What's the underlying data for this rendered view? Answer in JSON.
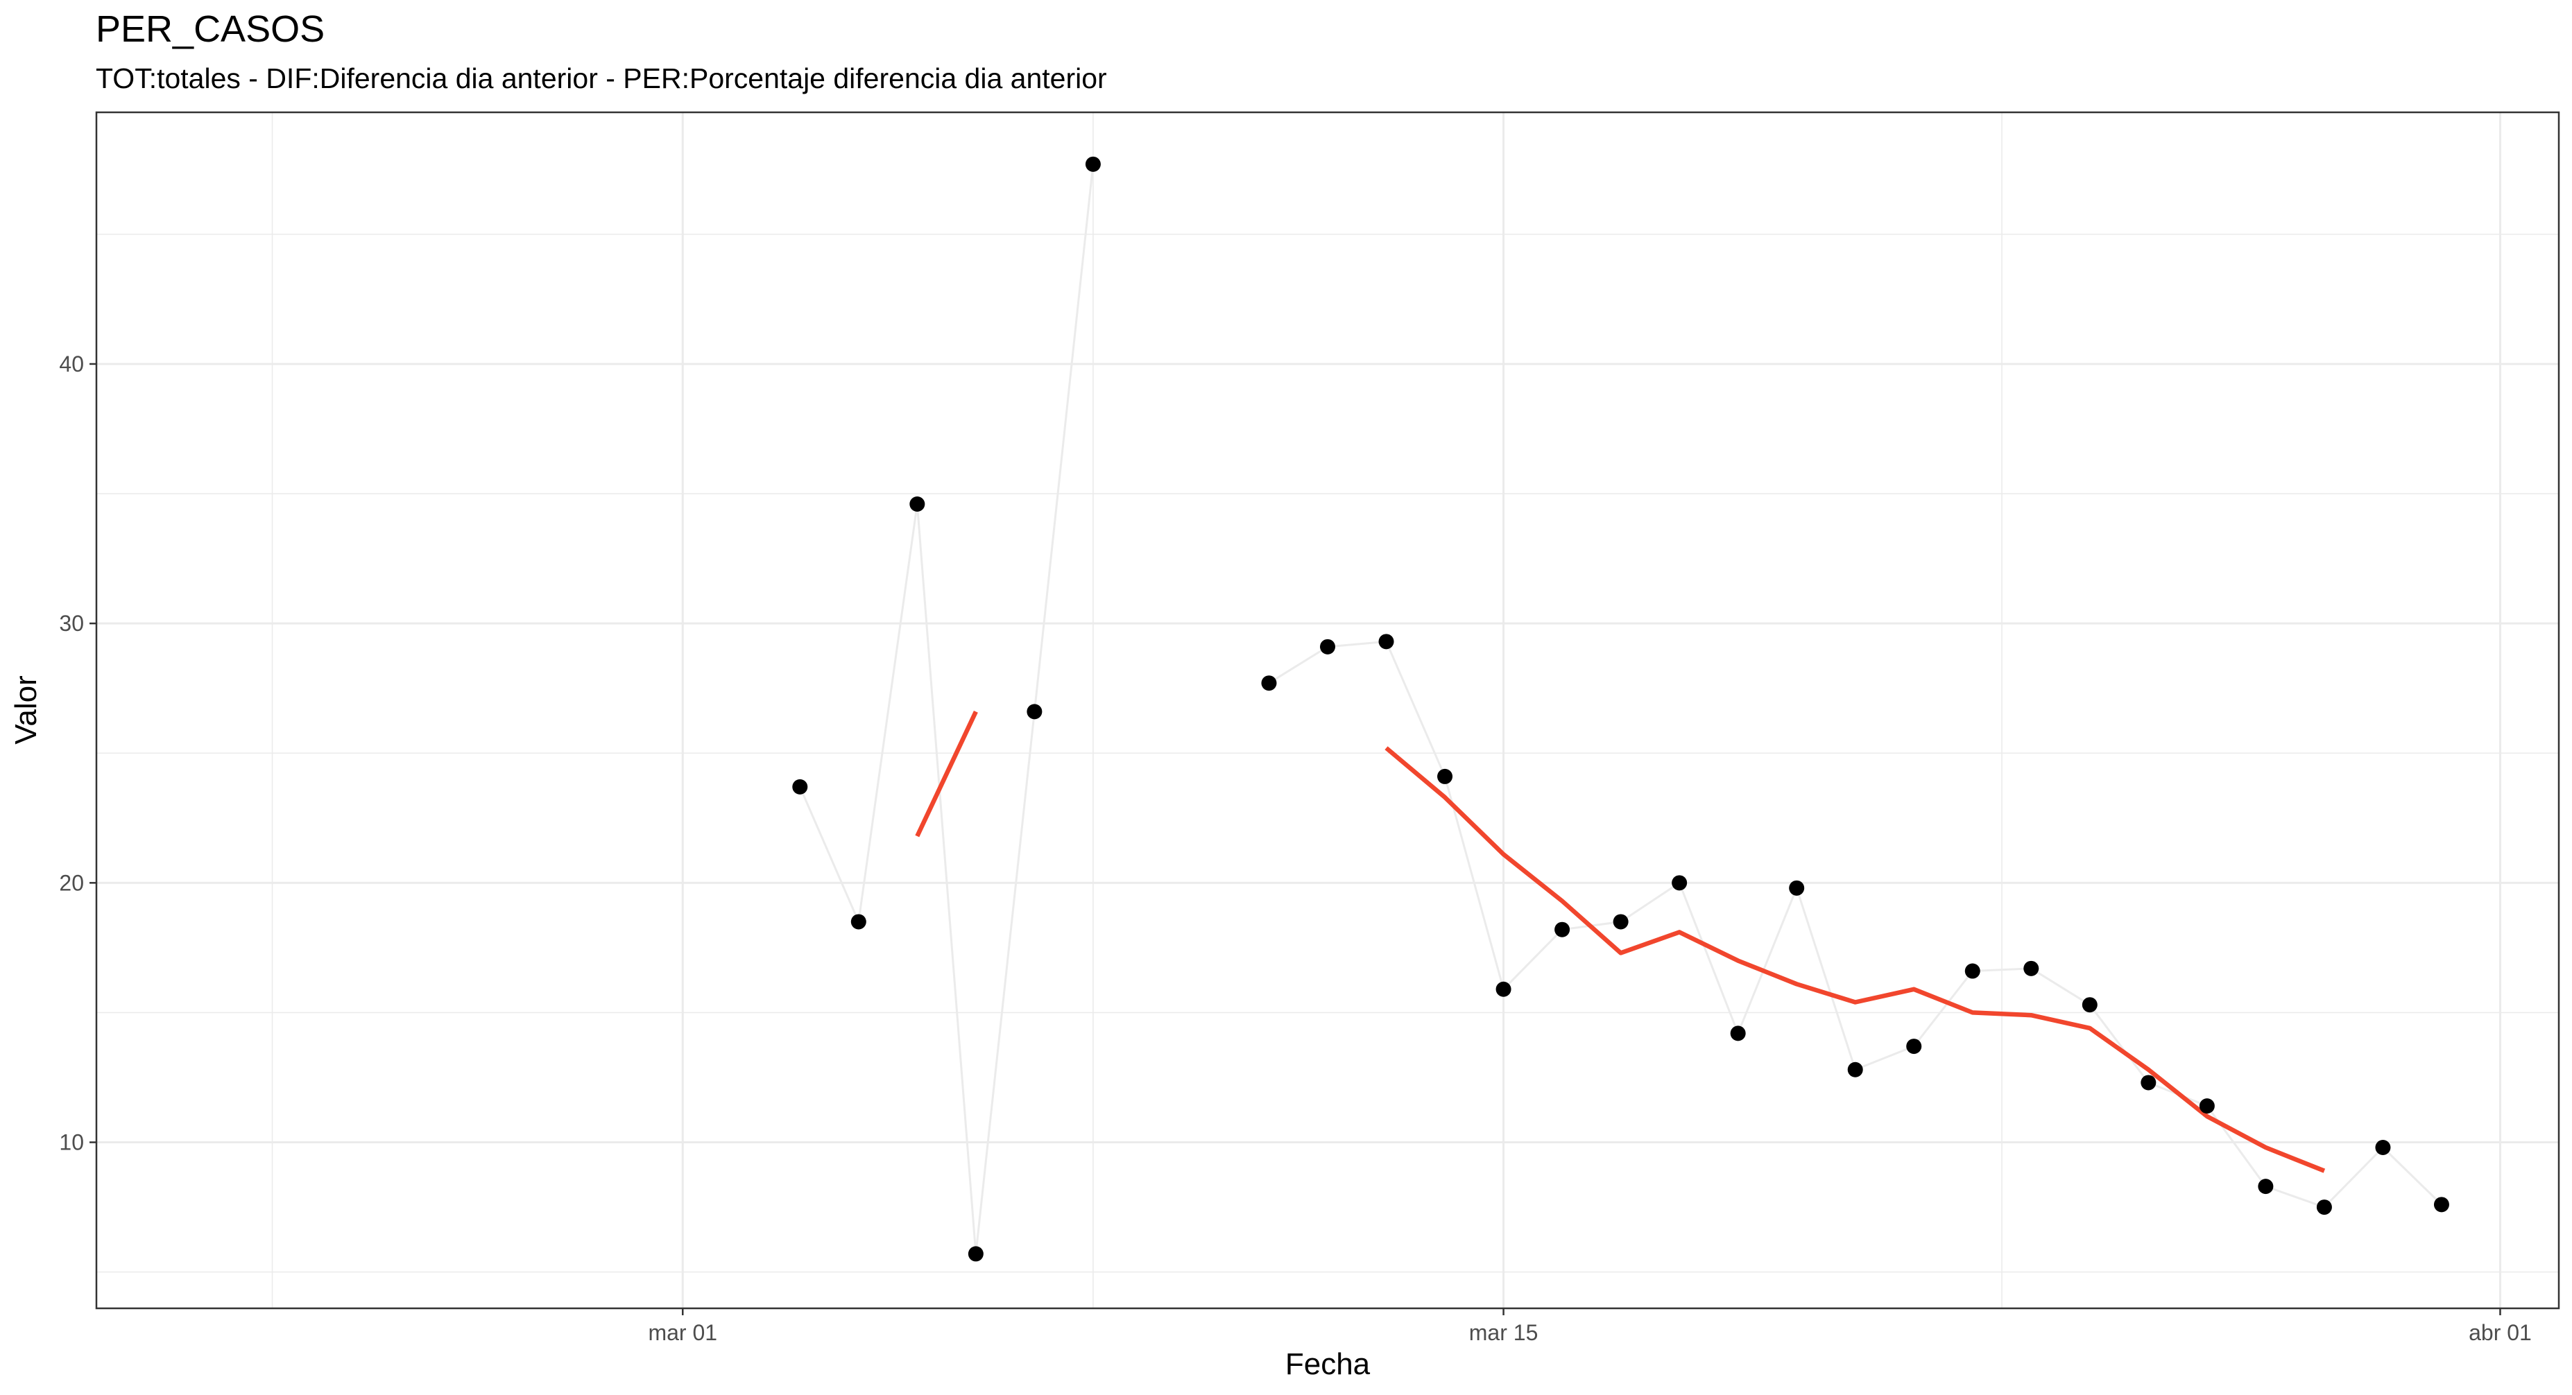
{
  "chart_data": {
    "type": "line",
    "title": "PER_CASOS",
    "subtitle": "TOT:totales - DIF:Diferencia dia anterior - PER:Porcentaje diferencia dia anterior",
    "xlabel": "Fecha",
    "ylabel": "Valor",
    "x_is_date": true,
    "xlim": [
      "2020-02-20",
      "2020-04-02"
    ],
    "ylim": [
      3.6,
      49.7
    ],
    "x_ticks": [
      {
        "date": "2020-03-01",
        "label": "mar 01"
      },
      {
        "date": "2020-03-15",
        "label": "mar 15"
      },
      {
        "date": "2020-04-01",
        "label": "abr 01"
      }
    ],
    "y_ticks": [
      10,
      20,
      30,
      40
    ],
    "grid": true,
    "series": [
      {
        "kind": "points+line",
        "color": "#000000",
        "line_color": "#ebebeb",
        "points": [
          {
            "x": "2020-03-03",
            "y": 23.7
          },
          {
            "x": "2020-03-04",
            "y": 18.5
          },
          {
            "x": "2020-03-05",
            "y": 34.6
          },
          {
            "x": "2020-03-06",
            "y": 5.7
          },
          {
            "x": "2020-03-07",
            "y": 26.6
          },
          {
            "x": "2020-03-08",
            "y": 47.7
          },
          {
            "x": "2020-03-11",
            "y": 27.7
          },
          {
            "x": "2020-03-12",
            "y": 29.1
          },
          {
            "x": "2020-03-13",
            "y": 29.3
          },
          {
            "x": "2020-03-14",
            "y": 24.1
          },
          {
            "x": "2020-03-15",
            "y": 15.9
          },
          {
            "x": "2020-03-16",
            "y": 18.2
          },
          {
            "x": "2020-03-17",
            "y": 18.5
          },
          {
            "x": "2020-03-18",
            "y": 20.0
          },
          {
            "x": "2020-03-19",
            "y": 14.2
          },
          {
            "x": "2020-03-20",
            "y": 19.8
          },
          {
            "x": "2020-03-21",
            "y": 12.8
          },
          {
            "x": "2020-03-22",
            "y": 13.7
          },
          {
            "x": "2020-03-23",
            "y": 16.6
          },
          {
            "x": "2020-03-24",
            "y": 16.7
          },
          {
            "x": "2020-03-25",
            "y": 15.3
          },
          {
            "x": "2020-03-26",
            "y": 12.3
          },
          {
            "x": "2020-03-27",
            "y": 11.4
          },
          {
            "x": "2020-03-28",
            "y": 8.3
          },
          {
            "x": "2020-03-29",
            "y": 7.5
          },
          {
            "x": "2020-03-30",
            "y": 9.8
          },
          {
            "x": "2020-03-31",
            "y": 7.6
          }
        ]
      },
      {
        "kind": "line",
        "color": "#f1462d",
        "segments": [
          [
            {
              "x": "2020-03-05",
              "y": 21.8
            },
            {
              "x": "2020-03-06",
              "y": 26.6
            }
          ],
          [
            {
              "x": "2020-03-13",
              "y": 25.2
            },
            {
              "x": "2020-03-14",
              "y": 23.3
            },
            {
              "x": "2020-03-15",
              "y": 21.1
            },
            {
              "x": "2020-03-16",
              "y": 19.3
            },
            {
              "x": "2020-03-17",
              "y": 17.3
            },
            {
              "x": "2020-03-18",
              "y": 18.1
            },
            {
              "x": "2020-03-19",
              "y": 17.0
            },
            {
              "x": "2020-03-20",
              "y": 16.1
            },
            {
              "x": "2020-03-21",
              "y": 15.4
            },
            {
              "x": "2020-03-22",
              "y": 15.9
            },
            {
              "x": "2020-03-23",
              "y": 15.0
            },
            {
              "x": "2020-03-24",
              "y": 14.9
            },
            {
              "x": "2020-03-25",
              "y": 14.4
            },
            {
              "x": "2020-03-26",
              "y": 12.8
            },
            {
              "x": "2020-03-27",
              "y": 11.0
            },
            {
              "x": "2020-03-28",
              "y": 9.8
            },
            {
              "x": "2020-03-29",
              "y": 8.9
            }
          ]
        ]
      }
    ]
  }
}
